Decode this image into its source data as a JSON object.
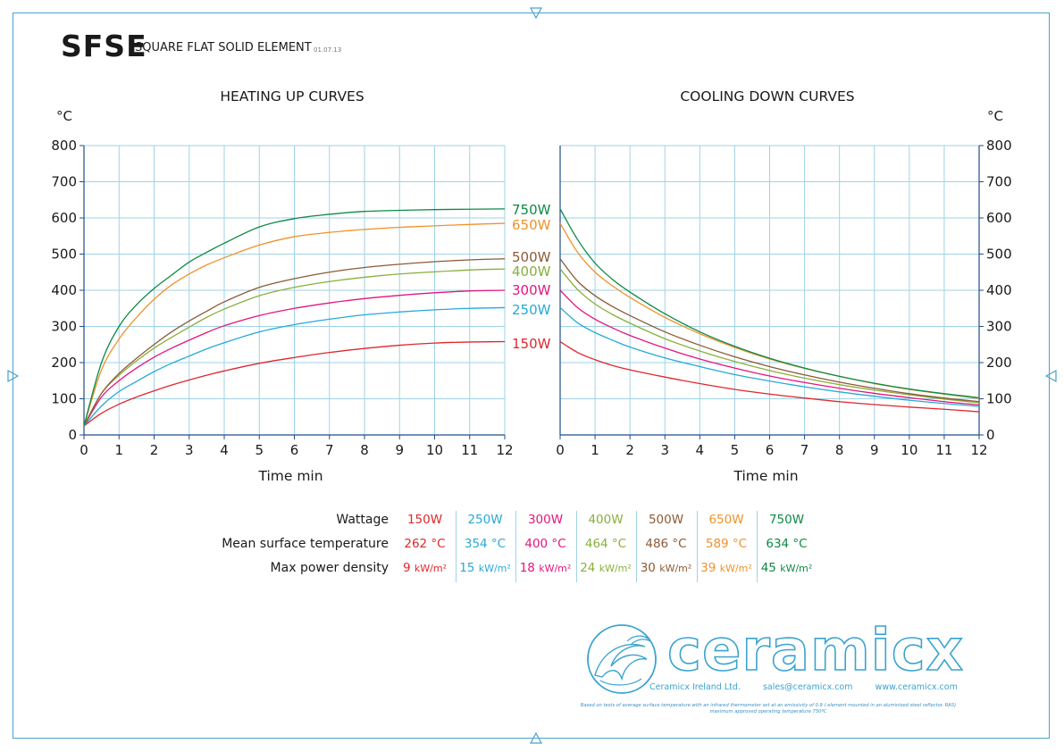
{
  "header": {
    "code": "SFSE",
    "name": "SQUARE FLAT SOLID ELEMENT",
    "date": "01.07.13"
  },
  "colors": {
    "frame": "#4aa3c8",
    "grid": "#9fd3e6",
    "150W": "#e0262b",
    "250W": "#27a9d8",
    "300W": "#e5147f",
    "400W": "#8aaf3b",
    "500W": "#8c5a35",
    "650W": "#f0922b",
    "750W": "#0c8a45"
  },
  "chart_data": [
    {
      "type": "line",
      "title": "HEATING UP CURVES",
      "xlabel": "Time min",
      "ylabel": "°C",
      "xlim": [
        0,
        12
      ],
      "ylim": [
        0,
        800
      ],
      "x_ticks": [
        "0",
        "1",
        "2",
        "3",
        "4",
        "5",
        "6",
        "7",
        "8",
        "9",
        "10",
        "11",
        "12"
      ],
      "y_ticks": [
        "0",
        "100",
        "200",
        "300",
        "400",
        "500",
        "600",
        "700",
        "800"
      ],
      "grid": true,
      "x": [
        0,
        0.5,
        1,
        1.5,
        2,
        2.5,
        3,
        3.5,
        4,
        5,
        6,
        7,
        8,
        9,
        10,
        11,
        12
      ],
      "series": [
        {
          "name": "150W",
          "values": [
            25,
            60,
            85,
            105,
            122,
            138,
            152,
            165,
            177,
            198,
            214,
            228,
            239,
            248,
            254,
            257,
            258
          ]
        },
        {
          "name": "250W",
          "values": [
            25,
            80,
            120,
            148,
            175,
            198,
            218,
            238,
            255,
            285,
            305,
            320,
            332,
            340,
            346,
            350,
            352
          ]
        },
        {
          "name": "300W",
          "values": [
            25,
            105,
            150,
            185,
            215,
            240,
            262,
            283,
            302,
            330,
            350,
            365,
            377,
            386,
            393,
            398,
            400
          ]
        },
        {
          "name": "400W",
          "values": [
            25,
            115,
            165,
            205,
            240,
            270,
            298,
            325,
            348,
            385,
            408,
            424,
            436,
            445,
            451,
            456,
            459
          ]
        },
        {
          "name": "500W",
          "values": [
            25,
            115,
            170,
            212,
            250,
            285,
            315,
            342,
            368,
            408,
            432,
            450,
            463,
            472,
            479,
            484,
            487
          ]
        },
        {
          "name": "650W",
          "values": [
            25,
            180,
            265,
            325,
            375,
            415,
            445,
            470,
            490,
            525,
            548,
            560,
            568,
            574,
            578,
            582,
            585
          ]
        },
        {
          "name": "750W",
          "values": [
            25,
            200,
            300,
            360,
            405,
            442,
            478,
            505,
            530,
            575,
            598,
            610,
            618,
            621,
            623,
            624,
            625
          ]
        }
      ],
      "line_labels": [
        "750W",
        "650W",
        "500W",
        "400W",
        "300W",
        "250W",
        "150W"
      ]
    },
    {
      "type": "line",
      "title": "COOLING DOWN CURVES",
      "xlabel": "Time min",
      "ylabel": "°C",
      "xlim": [
        0,
        12
      ],
      "ylim": [
        0,
        800
      ],
      "x_ticks": [
        "0",
        "1",
        "2",
        "3",
        "4",
        "5",
        "6",
        "7",
        "8",
        "9",
        "10",
        "11",
        "12"
      ],
      "y_ticks": [
        "0",
        "100",
        "200",
        "300",
        "400",
        "500",
        "600",
        "700",
        "800"
      ],
      "grid": true,
      "x": [
        0,
        0.5,
        1,
        1.5,
        2,
        3,
        4,
        5,
        6,
        7,
        8,
        9,
        10,
        11,
        12
      ],
      "series": [
        {
          "name": "150W",
          "values": [
            258,
            228,
            208,
            192,
            180,
            160,
            142,
            126,
            113,
            102,
            92,
            84,
            77,
            71,
            64
          ]
        },
        {
          "name": "250W",
          "values": [
            352,
            310,
            283,
            262,
            243,
            213,
            189,
            167,
            149,
            133,
            119,
            107,
            96,
            87,
            79
          ]
        },
        {
          "name": "300W",
          "values": [
            400,
            352,
            320,
            296,
            275,
            240,
            210,
            185,
            163,
            145,
            129,
            115,
            103,
            92,
            83
          ]
        },
        {
          "name": "400W",
          "values": [
            459,
            402,
            362,
            333,
            309,
            266,
            232,
            203,
            178,
            157,
            139,
            124,
            111,
            99,
            89
          ]
        },
        {
          "name": "500W",
          "values": [
            487,
            425,
            385,
            355,
            330,
            285,
            248,
            216,
            189,
            166,
            146,
            129,
            114,
            102,
            92
          ]
        },
        {
          "name": "650W",
          "values": [
            585,
            505,
            450,
            412,
            380,
            325,
            280,
            242,
            210,
            184,
            162,
            142,
            126,
            113,
            101
          ]
        },
        {
          "name": "750W",
          "values": [
            625,
            540,
            475,
            430,
            395,
            335,
            285,
            245,
            212,
            185,
            162,
            143,
            127,
            114,
            103
          ]
        }
      ]
    }
  ],
  "summary": {
    "row_labels": {
      "wattage": "Wattage",
      "temperature": "Mean surface temperature",
      "density": "Max power density"
    },
    "columns": [
      {
        "wattage": "150W",
        "temperature": "262 °C",
        "density_value": "9",
        "density_unit": "kW/m²"
      },
      {
        "wattage": "250W",
        "temperature": "354 °C",
        "density_value": "15",
        "density_unit": "kW/m²"
      },
      {
        "wattage": "300W",
        "temperature": "400 °C",
        "density_value": "18",
        "density_unit": "kW/m²"
      },
      {
        "wattage": "400W",
        "temperature": "464 °C",
        "density_value": "24",
        "density_unit": "kW/m²"
      },
      {
        "wattage": "500W",
        "temperature": "486 °C",
        "density_value": "30",
        "density_unit": "kW/m²"
      },
      {
        "wattage": "650W",
        "temperature": "589 °C",
        "density_value": "39",
        "density_unit": "kW/m²"
      },
      {
        "wattage": "750W",
        "temperature": "634 °C",
        "density_value": "45",
        "density_unit": "kW/m²"
      }
    ]
  },
  "logo": {
    "wordmark": "ceramicx",
    "company": "Ceramicx Ireland Ltd.",
    "email": "sales@ceramicx.com",
    "website": "www.ceramicx.com"
  },
  "footnote": {
    "line1": "Based on tests of average surface temperature with an infrared thermometer set at an emissivity of 0.9 ( element mounted in an aluminised steel reflector, RAS)",
    "line2": "maximum approved operating temperature 750ºC"
  }
}
